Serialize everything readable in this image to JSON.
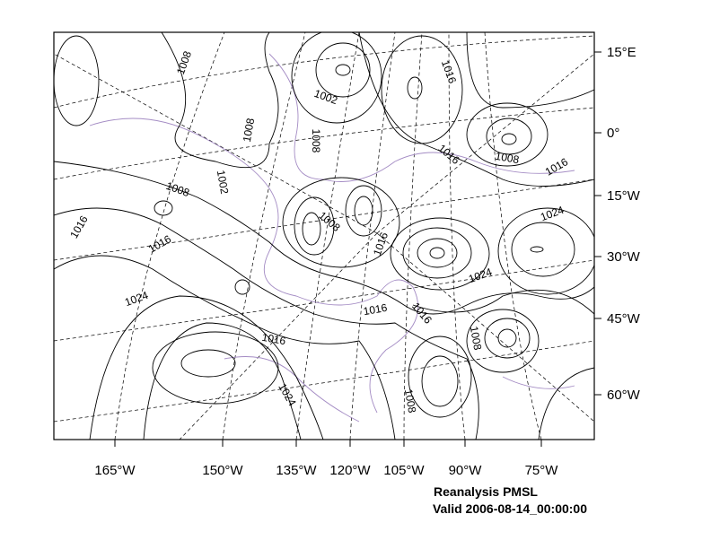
{
  "axes": {
    "bottom_labels": [
      "165°W",
      "150°W",
      "135°W",
      "120°W",
      "105°W",
      "90°W",
      "75°W"
    ],
    "right_labels": [
      "15°E",
      "0°",
      "15°W",
      "30°W",
      "45°W",
      "60°W"
    ]
  },
  "contour_labels": [
    "1008",
    "1016",
    "1002",
    "1008",
    "1008",
    "1016",
    "1008",
    "1016",
    "1002",
    "1008",
    "1024",
    "1008",
    "1016",
    "1016",
    "1016",
    "1024",
    "1024",
    "1016",
    "1016",
    "1008",
    "1016",
    "1024",
    "1008"
  ],
  "caption": {
    "title": "Reanalysis PMSL",
    "valid": "Valid 2006-08-14_00:00:00"
  }
}
